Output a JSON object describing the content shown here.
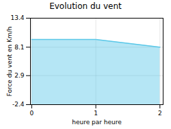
{
  "chart_data": {
    "type": "area",
    "title": "Evolution du vent",
    "xlabel": "heure par heure",
    "ylabel": "Force du vent en Km/h",
    "x": [
      0,
      0,
      1,
      2
    ],
    "values": [
      9.5,
      9.5,
      9.5,
      8.1
    ],
    "color": "#5bc8e8",
    "xlim": [
      -0.02,
      2.05
    ],
    "ylim": [
      -2.4,
      13.4
    ],
    "xticks": [
      0,
      1,
      2
    ],
    "yticks": [
      -2.4,
      2.9,
      8.1,
      13.4
    ],
    "grid": true
  }
}
